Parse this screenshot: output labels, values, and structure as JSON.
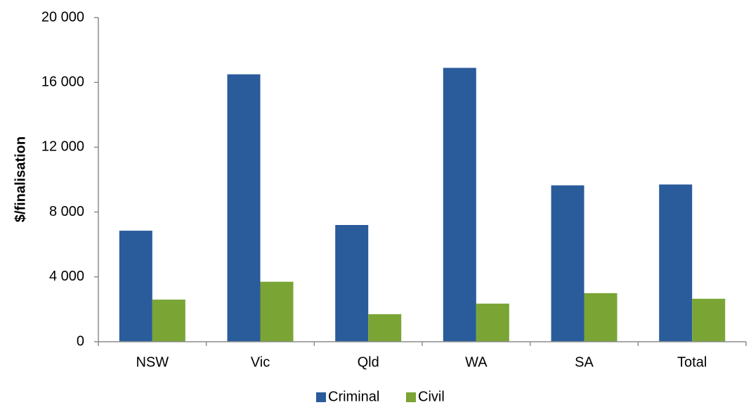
{
  "chart_data": {
    "type": "bar",
    "title": "",
    "xlabel": "",
    "ylabel": "$/finalisation",
    "categories": [
      "NSW",
      "Vic",
      "Qld",
      "WA",
      "SA",
      "Total"
    ],
    "series": [
      {
        "name": "Criminal",
        "color": "#2a5b9b",
        "values": [
          6850,
          16500,
          7200,
          16900,
          9650,
          9700
        ]
      },
      {
        "name": "Civil",
        "color": "#7aa534",
        "values": [
          2600,
          3700,
          1700,
          2350,
          3000,
          2650
        ]
      }
    ],
    "ylim": [
      0,
      20000
    ],
    "yticks": [
      0,
      4000,
      8000,
      12000,
      16000,
      20000
    ],
    "ytick_labels": [
      "0",
      "4 000",
      "8 000",
      "12 000",
      "16 000",
      "20 000"
    ],
    "grid": false,
    "legend_position": "bottom"
  }
}
